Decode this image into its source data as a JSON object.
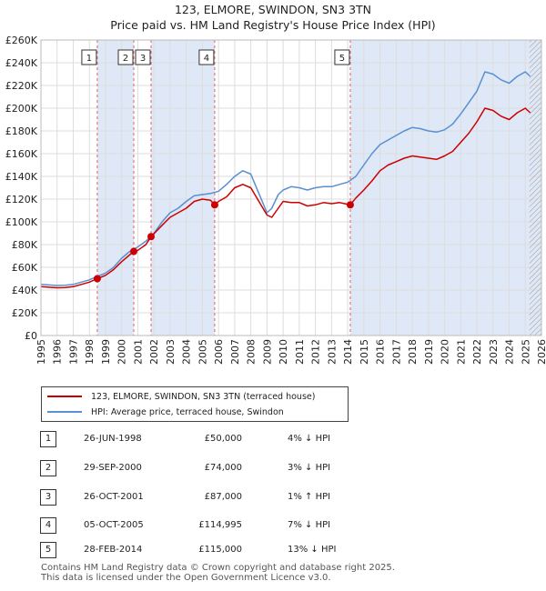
{
  "title_line1": "123, ELMORE, SWINDON, SN3 3TN",
  "title_line2": "Price paid vs. HM Land Registry's House Price Index (HPI)",
  "colors": {
    "price_paid": "#cc0000",
    "hpi": "#5a8fd0",
    "shade": "#dfe8f6",
    "marker_line": "#e06060"
  },
  "legend": {
    "price_paid": "123, ELMORE, SWINDON, SN3 3TN (terraced house)",
    "hpi": "HPI: Average price, terraced house, Swindon"
  },
  "transactions": [
    {
      "num": "1",
      "date": "26-JUN-1998",
      "price": "£50,000",
      "hpi": "4% ↓ HPI"
    },
    {
      "num": "2",
      "date": "29-SEP-2000",
      "price": "£74,000",
      "hpi": "3% ↓ HPI"
    },
    {
      "num": "3",
      "date": "26-OCT-2001",
      "price": "£87,000",
      "hpi": "1% ↑ HPI"
    },
    {
      "num": "4",
      "date": "05-OCT-2005",
      "price": "£114,995",
      "hpi": "7% ↓ HPI"
    },
    {
      "num": "5",
      "date": "28-FEB-2014",
      "price": "£115,000",
      "hpi": "13% ↓ HPI"
    }
  ],
  "footer": {
    "line1": "Contains HM Land Registry data © Crown copyright and database right 2025.",
    "line2": "This data is licensed under the Open Government Licence v3.0."
  },
  "chart_data": {
    "type": "line",
    "title": "Price paid vs. HM Land Registry's House Price Index (HPI)",
    "xlim": [
      1995,
      2026
    ],
    "ylim": [
      0,
      260000
    ],
    "x_ticks": [
      "1995",
      "1996",
      "1997",
      "1998",
      "1999",
      "2000",
      "2001",
      "2002",
      "2003",
      "2004",
      "2005",
      "2006",
      "2007",
      "2008",
      "2009",
      "2010",
      "2011",
      "2012",
      "2013",
      "2014",
      "2015",
      "2016",
      "2017",
      "2018",
      "2019",
      "2020",
      "2021",
      "2022",
      "2023",
      "2024",
      "2025",
      "2026"
    ],
    "y_ticks": [
      {
        "value": 0,
        "label": "£0"
      },
      {
        "value": 20000,
        "label": "£20K"
      },
      {
        "value": 40000,
        "label": "£40K"
      },
      {
        "value": 60000,
        "label": "£60K"
      },
      {
        "value": 80000,
        "label": "£80K"
      },
      {
        "value": 100000,
        "label": "£100K"
      },
      {
        "value": 120000,
        "label": "£120K"
      },
      {
        "value": 140000,
        "label": "£140K"
      },
      {
        "value": 160000,
        "label": "£160K"
      },
      {
        "value": 180000,
        "label": "£180K"
      },
      {
        "value": 200000,
        "label": "£200K"
      },
      {
        "value": 220000,
        "label": "£220K"
      },
      {
        "value": 240000,
        "label": "£240K"
      },
      {
        "value": 260000,
        "label": "£260K"
      }
    ],
    "shaded_ranges": [
      [
        1998.49,
        2000.75
      ],
      [
        2001.82,
        2005.76
      ],
      [
        2014.16,
        2026
      ]
    ],
    "hatch_from": 2025.25,
    "sales": [
      {
        "label": "1",
        "x": 1998.49,
        "y": 50000
      },
      {
        "label": "2",
        "x": 2000.75,
        "y": 74000
      },
      {
        "label": "3",
        "x": 2001.82,
        "y": 87000
      },
      {
        "label": "4",
        "x": 2005.76,
        "y": 114995
      },
      {
        "label": "5",
        "x": 2014.16,
        "y": 115000
      }
    ],
    "series": [
      {
        "name": "HPI: Average price, terraced house, Swindon",
        "x": [
          1995,
          1995.5,
          1996,
          1996.5,
          1997,
          1997.5,
          1998,
          1998.5,
          1999,
          1999.5,
          2000,
          2000.5,
          2001,
          2001.5,
          2002,
          2002.5,
          2003,
          2003.5,
          2004,
          2004.5,
          2005,
          2005.5,
          2006,
          2006.5,
          2007,
          2007.5,
          2008,
          2008.5,
          2009,
          2009.3,
          2009.7,
          2010,
          2010.5,
          2011,
          2011.5,
          2012,
          2012.5,
          2013,
          2013.5,
          2014,
          2014.5,
          2015,
          2015.5,
          2016,
          2016.5,
          2017,
          2017.5,
          2018,
          2018.5,
          2019,
          2019.5,
          2020,
          2020.5,
          2021,
          2021.5,
          2022,
          2022.5,
          2023,
          2023.5,
          2024,
          2024.5,
          2025,
          2025.3
        ],
        "values": [
          45000,
          44500,
          44000,
          44200,
          45000,
          47000,
          49000,
          52000,
          55000,
          60000,
          68000,
          74000,
          78000,
          83000,
          90000,
          100000,
          108000,
          112000,
          118000,
          123000,
          124000,
          125000,
          127000,
          133000,
          140000,
          145000,
          142000,
          125000,
          108000,
          112000,
          124000,
          128000,
          131000,
          130000,
          128000,
          130000,
          131000,
          131000,
          133000,
          135000,
          140000,
          150000,
          160000,
          168000,
          172000,
          176000,
          180000,
          183000,
          182000,
          180000,
          179000,
          181000,
          186000,
          195000,
          205000,
          215000,
          232000,
          230000,
          225000,
          222000,
          228000,
          232000,
          228000
        ]
      },
      {
        "name": "123, ELMORE, SWINDON, SN3 3TN (terraced house)",
        "x": [
          1995,
          1995.5,
          1996,
          1996.5,
          1997,
          1997.5,
          1998,
          1998.49,
          1999,
          1999.5,
          2000,
          2000.75,
          2001,
          2001.5,
          2001.82,
          2002.5,
          2003,
          2003.5,
          2004,
          2004.5,
          2005,
          2005.5,
          2005.76,
          2006,
          2006.5,
          2007,
          2007.5,
          2008,
          2008.5,
          2009,
          2009.3,
          2009.7,
          2010,
          2010.5,
          2011,
          2011.5,
          2012,
          2012.5,
          2013,
          2013.5,
          2014.16,
          2014.5,
          2015,
          2015.5,
          2016,
          2016.5,
          2017,
          2017.5,
          2018,
          2018.5,
          2019,
          2019.5,
          2020,
          2020.5,
          2021,
          2021.5,
          2022,
          2022.5,
          2023,
          2023.5,
          2024,
          2024.5,
          2025,
          2025.3
        ],
        "values": [
          43000,
          42500,
          42000,
          42200,
          43000,
          45000,
          47000,
          50000,
          53000,
          58000,
          65000,
          74000,
          75000,
          80000,
          87000,
          97000,
          104000,
          108000,
          112000,
          118000,
          120000,
          119000,
          114995,
          118000,
          122000,
          130000,
          133000,
          130000,
          118000,
          106000,
          104000,
          112000,
          118000,
          117000,
          117000,
          114000,
          115000,
          117000,
          116000,
          117000,
          115000,
          121000,
          128000,
          136000,
          145000,
          150000,
          153000,
          156000,
          158000,
          157000,
          156000,
          155000,
          158000,
          162000,
          170000,
          178000,
          188000,
          200000,
          198000,
          193000,
          190000,
          196000,
          200000,
          196000
        ]
      }
    ]
  }
}
